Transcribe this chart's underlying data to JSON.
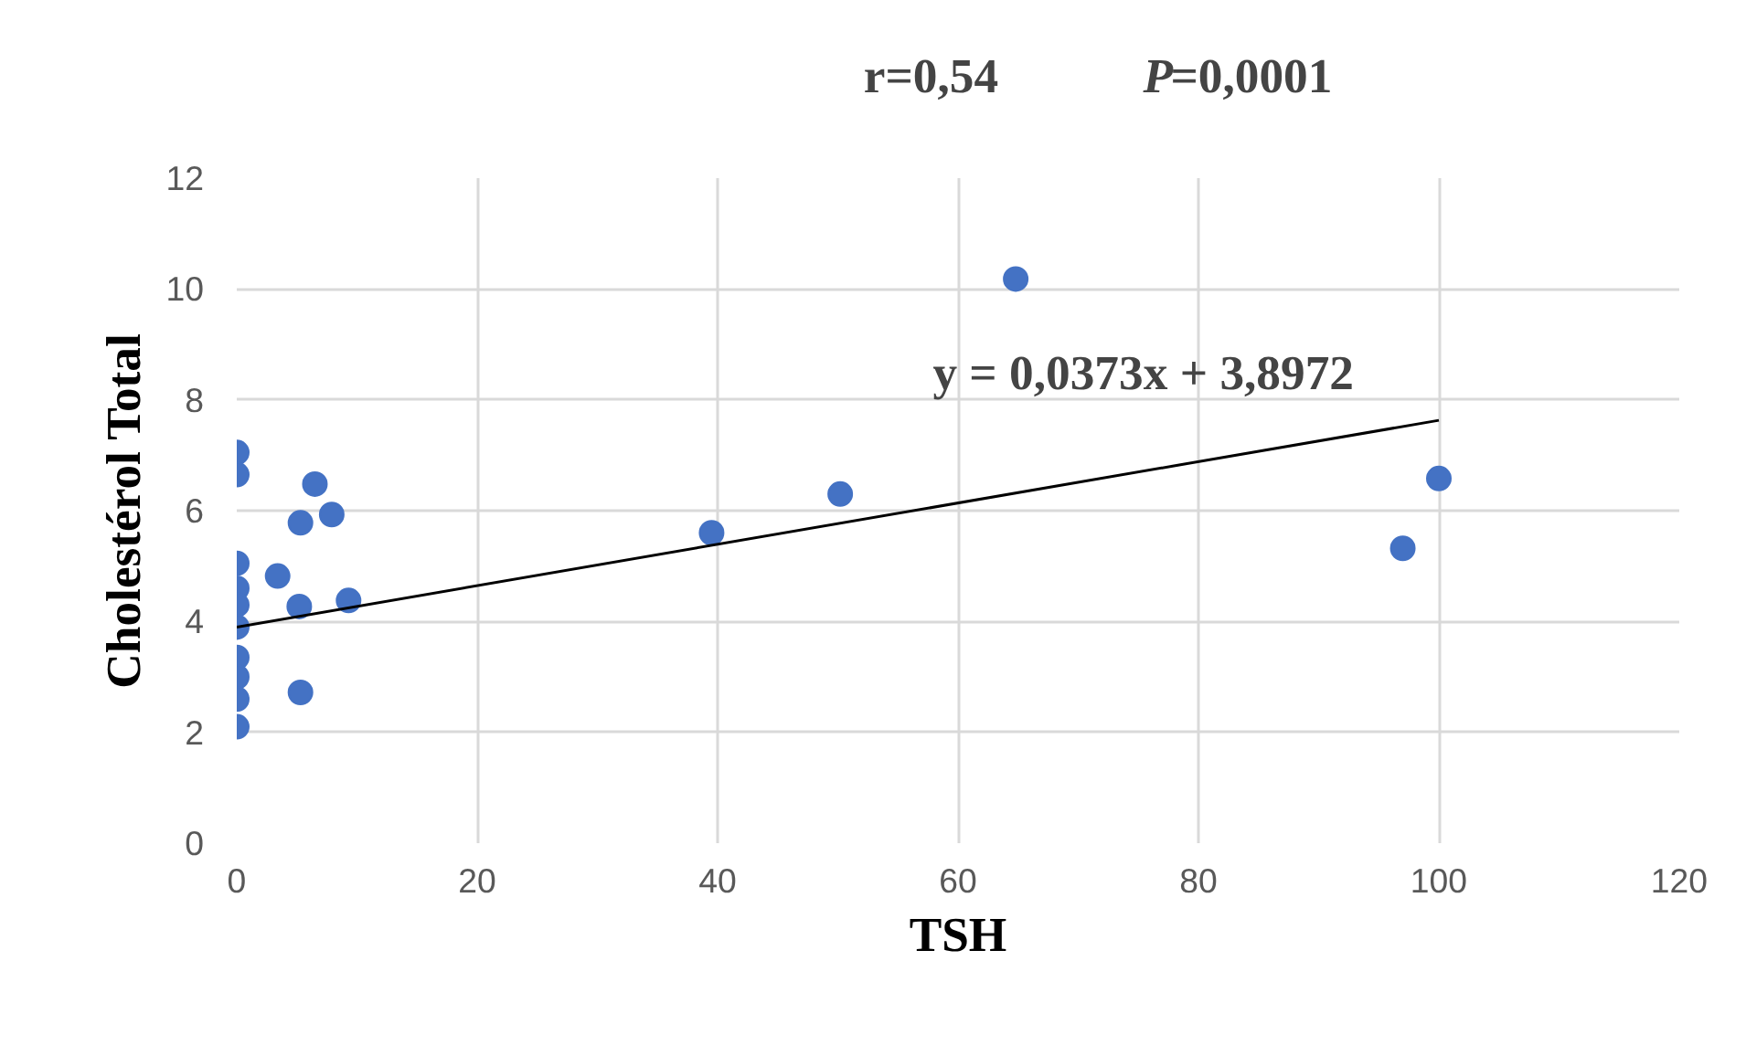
{
  "chart_data": {
    "type": "scatter",
    "xlabel": "TSH",
    "ylabel": "Cholestérol Total",
    "annotations": [
      "r=0,54",
      "P=0,0001",
      "y = 0,0373x + 3,8972"
    ],
    "xlim": [
      0,
      120
    ],
    "xticks": [
      0,
      20,
      40,
      60,
      80,
      100,
      120
    ],
    "ylim": [
      0,
      12
    ],
    "yticks": [
      0,
      2,
      4,
      6,
      8,
      10,
      12
    ],
    "grid": true,
    "series": [
      {
        "color": "#4472c4",
        "marker": "circle",
        "x": [
          0,
          0,
          0,
          0,
          0,
          0,
          0,
          0,
          0,
          0,
          3.4,
          5.3,
          6.5,
          7.9,
          5.2,
          9.3,
          5.3,
          39.5,
          50.2,
          64.8,
          97,
          100
        ],
        "values": [
          7.05,
          6.65,
          5.05,
          4.6,
          4.3,
          3.9,
          3.35,
          3.0,
          2.6,
          2.1,
          4.82,
          5.78,
          6.48,
          5.93,
          4.27,
          4.38,
          2.72,
          5.6,
          6.3,
          10.18,
          5.32,
          6.58
        ]
      },
      {
        "type": "line",
        "color": "#000000",
        "x": [
          0,
          100
        ],
        "values": [
          3.9,
          7.63
        ]
      }
    ]
  }
}
